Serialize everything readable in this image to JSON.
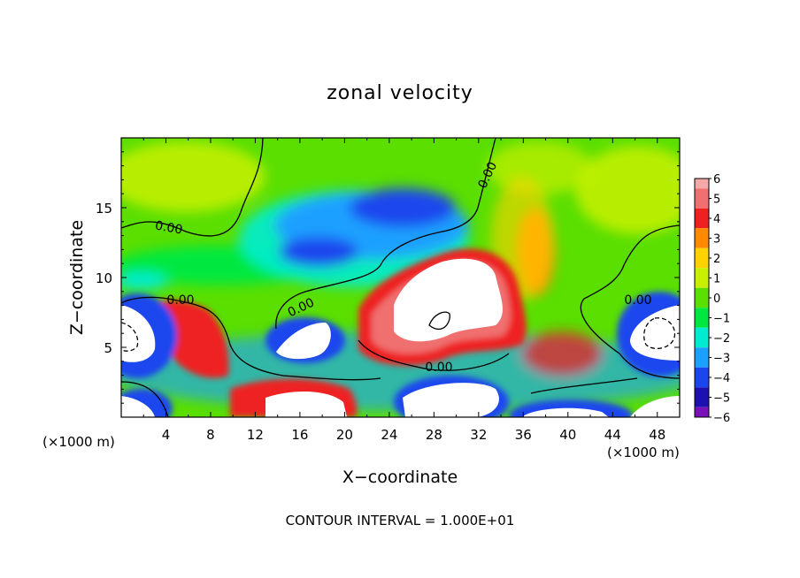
{
  "chart_data": {
    "type": "heatmap",
    "title": "zonal velocity",
    "xlabel": "X−coordinate",
    "ylabel": "Z−coordinate",
    "x_unit_left": "(×1000 m)",
    "x_unit_right": "(×1000 m)",
    "footer": "CONTOUR INTERVAL = 1.000E+01",
    "contour_label": "0.00",
    "xlim": [
      0,
      50
    ],
    "ylim": [
      0,
      20
    ],
    "x_ticks": [
      4,
      8,
      12,
      16,
      20,
      24,
      28,
      32,
      36,
      40,
      44,
      48
    ],
    "y_ticks": [
      5,
      10,
      15
    ],
    "colorbar": {
      "ticks": [
        "6",
        "5",
        "4",
        "3",
        "2",
        "1",
        "0",
        "−1",
        "−2",
        "−3",
        "−4",
        "−5",
        "−6"
      ],
      "colors": [
        "#f4a8a8",
        "#f07070",
        "#ee2020",
        "#ff8a00",
        "#ffd200",
        "#c8f000",
        "#5adf00",
        "#00e840",
        "#00ecd0",
        "#1aa0ff",
        "#1a46ee",
        "#1c10b0",
        "#7a10b8"
      ]
    },
    "saturation": {
      "above": "#ffffff",
      "below": "#ffffff"
    },
    "grid": false
  }
}
